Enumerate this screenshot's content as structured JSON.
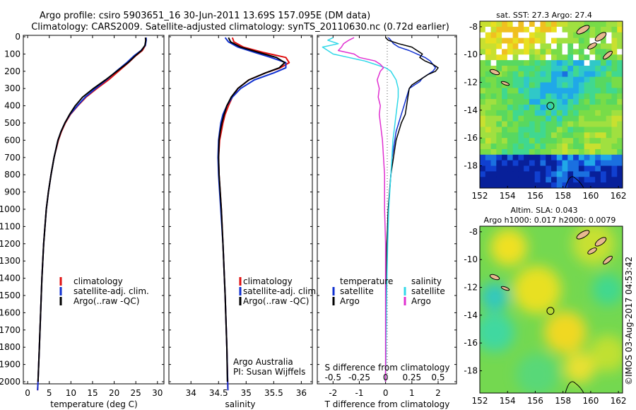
{
  "header": {
    "title_line1": "Argo profile: csiro 5903651_16 30-Jun-2011 13.69S 157.095E (DM data)",
    "title_line2": "Climatology: CARS2009. Satellite-adjusted climatology: synTS_20110630.nc (0.72d earlier)"
  },
  "colors": {
    "climatology": "#e01010",
    "satellite": "#1030d0",
    "argo": "#000000",
    "sal_satellite": "#30d8e8",
    "sal_argo": "#e030d0"
  },
  "depth_ticks": [
    "0",
    "100",
    "200",
    "300",
    "400",
    "500",
    "600",
    "700",
    "800",
    "900",
    "1000",
    "1100",
    "1200",
    "1300",
    "1400",
    "1500",
    "1600",
    "1700",
    "1800",
    "1900",
    "2000"
  ],
  "chart_data": [
    {
      "type": "line",
      "name": "temperature",
      "xlabel": "temperature (deg C)",
      "ylabel": "depth",
      "xlim": [
        -1,
        31.5
      ],
      "ylim": [
        2060,
        0
      ],
      "xticks": [
        0,
        5,
        10,
        15,
        20,
        25,
        30
      ],
      "yticks": [
        0,
        100,
        200,
        300,
        400,
        500,
        600,
        700,
        800,
        900,
        1000,
        1100,
        1200,
        1300,
        1400,
        1500,
        1600,
        1700,
        1800,
        1900,
        2000
      ],
      "legend": {
        "entries": [
          "climatology",
          "satellite-adj. clim.",
          "Argo(..raw -QC)"
        ],
        "position": "middle-right"
      },
      "series": [
        {
          "name": "climatology",
          "depth": [
            5,
            20,
            50,
            80,
            110,
            150,
            200,
            250,
            300,
            350,
            400,
            450,
            500,
            550,
            600,
            700,
            800,
            900,
            1000,
            1200,
            1400,
            1600,
            1800,
            2000,
            2050
          ],
          "values": [
            27.3,
            27.3,
            27.2,
            26.5,
            25.0,
            23.3,
            21.0,
            18.7,
            16.0,
            13.5,
            11.6,
            9.9,
            8.7,
            7.8,
            7.1,
            6.1,
            5.4,
            4.8,
            4.3,
            3.7,
            3.3,
            3.0,
            2.7,
            2.4,
            2.3
          ]
        },
        {
          "name": "satellite-adj. clim.",
          "depth": [
            5,
            20,
            50,
            80,
            110,
            150,
            200,
            250,
            300,
            350,
            400,
            450,
            500,
            550,
            600,
            700,
            800,
            900,
            1000,
            1200,
            1400,
            1600,
            1800,
            2000,
            2050
          ],
          "values": [
            27.4,
            27.4,
            27.2,
            26.2,
            24.6,
            22.9,
            20.5,
            18.2,
            15.7,
            13.3,
            11.5,
            9.8,
            8.6,
            7.7,
            7.0,
            6.1,
            5.4,
            4.8,
            4.3,
            3.7,
            3.3,
            3.0,
            2.7,
            2.4,
            2.3
          ]
        },
        {
          "name": "Argo",
          "depth": [
            5,
            20,
            50,
            80,
            110,
            150,
            200,
            250,
            300,
            350,
            400,
            450,
            500,
            550,
            600,
            700,
            800,
            900,
            1000,
            1200,
            1400,
            1600,
            1800,
            2000
          ],
          "values": [
            27.2,
            27.3,
            27.1,
            26.3,
            24.9,
            23.2,
            20.6,
            18.0,
            15.2,
            12.7,
            11.0,
            9.7,
            8.6,
            7.7,
            7.0,
            6.1,
            5.4,
            4.8,
            4.3,
            3.7,
            3.3,
            3.0,
            2.7,
            2.4
          ]
        }
      ]
    },
    {
      "type": "line",
      "name": "salinity",
      "xlabel": "salinity",
      "ylabel": "depth",
      "xlim": [
        33.6,
        36.2
      ],
      "ylim": [
        2060,
        0
      ],
      "xticks": [
        34,
        34.5,
        35,
        35.5,
        36
      ],
      "xtick_labels": [
        "34",
        "34.5",
        "35",
        "35.5",
        "36"
      ],
      "legend": {
        "entries": [
          "climatology",
          "satellite-adj. clim.",
          "Argo(..raw -QC)"
        ],
        "position": "middle-right"
      },
      "annotation": [
        "Argo Australia",
        "PI: Susan Wijffels"
      ],
      "series": [
        {
          "name": "climatology",
          "depth": [
            5,
            30,
            60,
            90,
            120,
            150,
            180,
            210,
            250,
            300,
            350,
            400,
            450,
            500,
            550,
            600,
            700,
            800,
            900,
            1000,
            1200,
            1500,
            1800,
            2050
          ],
          "values": [
            34.75,
            34.78,
            34.95,
            35.3,
            35.72,
            35.78,
            35.62,
            35.35,
            35.05,
            34.85,
            34.75,
            34.68,
            34.62,
            34.58,
            34.55,
            34.52,
            34.5,
            34.51,
            34.53,
            34.55,
            34.58,
            34.62,
            34.65,
            34.67
          ]
        },
        {
          "name": "satellite-adj. clim.",
          "depth": [
            5,
            30,
            60,
            90,
            120,
            150,
            180,
            210,
            250,
            300,
            350,
            400,
            450,
            500,
            550,
            600,
            700,
            800,
            900,
            1000,
            1200,
            1500,
            1800,
            2050
          ],
          "values": [
            34.62,
            34.68,
            34.85,
            35.15,
            35.45,
            35.72,
            35.72,
            35.5,
            35.15,
            34.9,
            34.75,
            34.65,
            34.58,
            34.54,
            34.52,
            34.5,
            34.49,
            34.5,
            34.52,
            34.54,
            34.58,
            34.62,
            34.65,
            34.67
          ]
        },
        {
          "name": "Argo",
          "depth": [
            5,
            30,
            60,
            90,
            120,
            150,
            180,
            210,
            250,
            300,
            350,
            400,
            450,
            500,
            550,
            600,
            700,
            800,
            900,
            1000,
            1200,
            1500,
            1800,
            2000
          ],
          "values": [
            34.68,
            34.72,
            34.9,
            35.22,
            35.55,
            35.7,
            35.6,
            35.35,
            35.05,
            34.85,
            34.73,
            34.65,
            34.6,
            34.56,
            34.53,
            34.51,
            34.5,
            34.51,
            34.53,
            34.55,
            34.58,
            34.62,
            34.65,
            34.66
          ]
        }
      ]
    },
    {
      "type": "line",
      "name": "differences",
      "xlabel": "T difference from climatology",
      "xlabel_top": "S difference from climatology",
      "xlim": [
        -2.6,
        2.7
      ],
      "ylim": [
        2060,
        0
      ],
      "xticks": [
        -2,
        -1,
        0,
        1,
        2
      ],
      "xtick_labels": [
        "-2",
        "-1",
        "0",
        "1",
        "2"
      ],
      "s_ticks": [
        "-0.5",
        "-0.25",
        "0",
        "0.25",
        "0.5"
      ],
      "legend": {
        "headers": [
          "temperature",
          "salinity"
        ],
        "entries": [
          "satellite",
          "Argo",
          "satellite",
          "Argo"
        ],
        "position": "middle"
      },
      "series": [
        {
          "name": "temperature satellite",
          "depth": [
            5,
            20,
            40,
            60,
            80,
            100,
            120,
            140,
            160,
            180,
            200,
            220,
            240,
            260,
            280,
            300,
            350,
            400,
            450,
            500,
            550,
            600,
            700,
            800,
            1000,
            1200,
            1500,
            2000
          ],
          "values": [
            0.1,
            0.2,
            0.3,
            0.5,
            0.9,
            1.2,
            1.5,
            1.7,
            1.8,
            1.9,
            1.8,
            1.6,
            1.4,
            1.3,
            1.1,
            0.9,
            0.8,
            0.7,
            0.6,
            0.5,
            0.4,
            0.35,
            0.25,
            0.2,
            0.1,
            0.05,
            0.03,
            0
          ]
        },
        {
          "name": "temperature Argo",
          "depth": [
            5,
            20,
            40,
            60,
            80,
            100,
            120,
            140,
            160,
            180,
            200,
            220,
            240,
            260,
            280,
            300,
            350,
            400,
            450,
            500,
            550,
            600,
            700,
            800,
            1000,
            1200,
            1500,
            2000
          ],
          "values": [
            0.0,
            0.1,
            0.5,
            1.0,
            1.2,
            1.4,
            1.3,
            1.5,
            1.8,
            2.0,
            1.9,
            1.6,
            1.4,
            1.2,
            1.0,
            0.9,
            0.85,
            0.8,
            0.75,
            0.6,
            0.5,
            0.4,
            0.3,
            0.2,
            0.1,
            0.05,
            0.02,
            0
          ]
        },
        {
          "name": "salinity satellite",
          "depth": [
            5,
            20,
            40,
            60,
            80,
            100,
            120,
            140,
            160,
            180,
            200,
            250,
            300,
            350,
            400,
            450,
            500,
            550,
            600,
            700,
            800,
            1000,
            1200,
            1500,
            2000
          ],
          "values": [
            -0.5,
            -0.55,
            -0.45,
            -0.6,
            -0.55,
            -0.5,
            -0.35,
            -0.2,
            -0.1,
            0.0,
            0.05,
            0.1,
            0.12,
            0.12,
            0.11,
            0.1,
            0.09,
            0.08,
            0.07,
            0.06,
            0.05,
            0.03,
            0.02,
            0.01,
            0
          ]
        },
        {
          "name": "salinity Argo",
          "depth": [
            5,
            20,
            40,
            60,
            80,
            100,
            120,
            140,
            160,
            180,
            200,
            250,
            300,
            350,
            400,
            450,
            500,
            550,
            600,
            700,
            800,
            1000,
            1200,
            1500,
            2000
          ],
          "values": [
            -0.3,
            -0.35,
            -0.4,
            -0.42,
            -0.45,
            -0.3,
            -0.25,
            -0.1,
            -0.05,
            -0.02,
            -0.05,
            -0.08,
            -0.06,
            -0.07,
            -0.05,
            -0.06,
            -0.05,
            -0.04,
            -0.03,
            -0.02,
            -0.01,
            -0.01,
            0,
            0,
            0
          ]
        }
      ]
    },
    {
      "type": "heatmap",
      "name": "sst_map",
      "title": "sat. SST: 27.3 Argo: 27.4",
      "xticks": [
        "152",
        "154",
        "156",
        "158",
        "160",
        "162"
      ],
      "yticks": [
        "-8",
        "-10",
        "-12",
        "-14",
        "-16",
        "-18"
      ],
      "xlim": [
        152,
        162.3
      ],
      "ylim": [
        -19.6,
        -7.6
      ],
      "marker": {
        "lon": 157.095,
        "lat": -13.69
      }
    },
    {
      "type": "heatmap",
      "name": "sla_map",
      "title_line1": "Altim. SLA: 0.043",
      "title_line2": "Argo h1000: 0.017 h2000: 0.0079",
      "xticks": [
        "152",
        "154",
        "156",
        "158",
        "160",
        "162"
      ],
      "yticks": [
        "-8",
        "-10",
        "-12",
        "-14",
        "-16",
        "-18"
      ],
      "xlim": [
        152,
        162.3
      ],
      "ylim": [
        -19.6,
        -7.6
      ],
      "marker": {
        "lon": 157.095,
        "lat": -13.69
      }
    }
  ],
  "legend_labels": {
    "climatology": "climatology",
    "satellite": "satellite-adj. clim.",
    "argo": "Argo(..raw -QC)"
  },
  "diff_legend": {
    "temperature": "temperature",
    "salinity": "salinity",
    "satellite": "satellite",
    "argo": "Argo"
  },
  "credit": "©IMOS 03-Aug-2017 04:53:42"
}
